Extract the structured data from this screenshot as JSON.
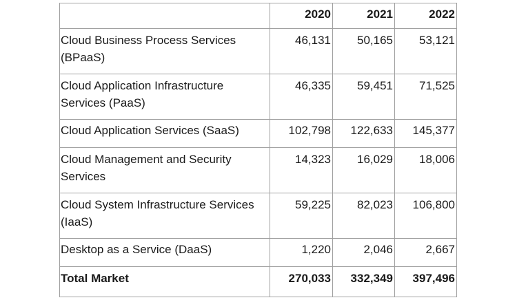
{
  "table": {
    "headers": [
      "",
      "2020",
      "2021",
      "2022"
    ],
    "rows": [
      {
        "label": "Cloud Business Process Services (BPaaS)",
        "v2020": "46,131",
        "v2021": "50,165",
        "v2022": "53,121"
      },
      {
        "label": "Cloud Application Infrastructure Services (PaaS)",
        "v2020": "46,335",
        "v2021": "59,451",
        "v2022": "71,525"
      },
      {
        "label": "Cloud Application Services (SaaS)",
        "v2020": "102,798",
        "v2021": "122,633",
        "v2022": "145,377"
      },
      {
        "label": "Cloud Management and Security Services",
        "v2020": "14,323",
        "v2021": "16,029",
        "v2022": "18,006"
      },
      {
        "label": "Cloud System Infrastructure Services (IaaS)",
        "v2020": "59,225",
        "v2021": "82,023",
        "v2022": "106,800"
      },
      {
        "label": "Desktop as a Service (DaaS)",
        "v2020": "1,220",
        "v2021": "2,046",
        "v2022": "2,667"
      }
    ],
    "total": {
      "label": "Total Market",
      "v2020": "270,033",
      "v2021": "332,349",
      "v2022": "397,496"
    }
  }
}
